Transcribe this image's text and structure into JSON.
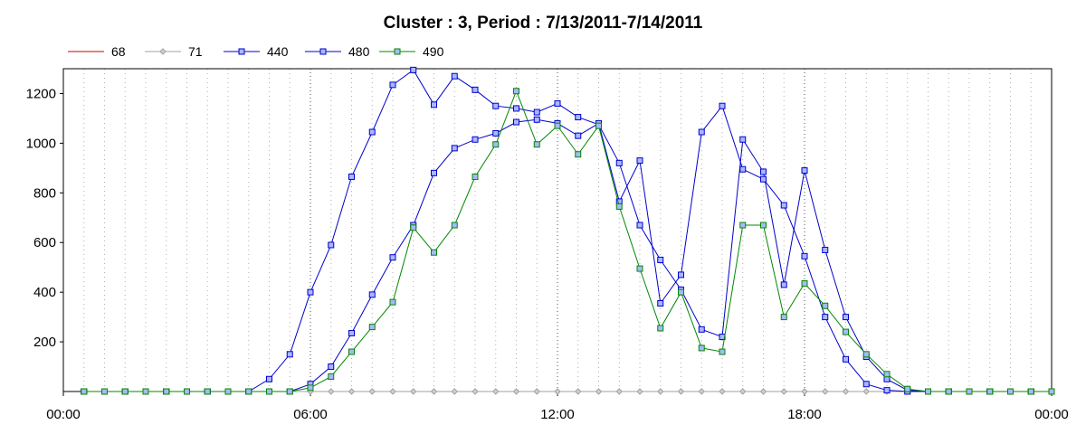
{
  "chart_data": {
    "type": "line",
    "title": "Cluster : 3, Period : 7/13/2011-7/14/2011",
    "xlabel": "",
    "ylabel": "",
    "x_ticks": [
      "00:00",
      "06:00",
      "12:00",
      "18:00",
      "00:00"
    ],
    "x_range_hours": [
      0,
      24
    ],
    "y_ticks": [
      200,
      400,
      600,
      800,
      1000,
      1200
    ],
    "ylim": [
      0,
      1300
    ],
    "grid": "dotted vertical every 30 min (denser), horizontal at y ticks",
    "legend_position": "top-left",
    "x_hours": [
      0.5,
      1,
      1.5,
      2,
      2.5,
      3,
      3.5,
      4,
      4.5,
      5,
      5.5,
      6,
      6.5,
      7,
      7.5,
      8,
      8.5,
      9,
      9.5,
      10,
      10.5,
      11,
      11.5,
      12,
      12.5,
      13,
      13.5,
      14,
      14.5,
      15,
      15.5,
      16,
      16.5,
      17,
      17.5,
      18,
      18.5,
      19,
      19.5,
      20,
      20.5,
      21,
      21.5,
      22,
      22.5,
      23,
      23.5,
      24
    ],
    "series": [
      {
        "name": "68",
        "color": "#cc0000",
        "marker": "none",
        "values": [
          0,
          0,
          0,
          0,
          0,
          0,
          0,
          0,
          0,
          0,
          0,
          0,
          0,
          0,
          0,
          0,
          0,
          0,
          0,
          0,
          0,
          0,
          0,
          0,
          0,
          0,
          0,
          0,
          0,
          0,
          0,
          0,
          0,
          0,
          0,
          0,
          0,
          0,
          0,
          0,
          0,
          0,
          0,
          0,
          0,
          0,
          0,
          0
        ]
      },
      {
        "name": "71",
        "color": "#a0a0a0",
        "marker": "diamond",
        "values": [
          0,
          0,
          0,
          0,
          0,
          0,
          0,
          0,
          0,
          0,
          0,
          0,
          0,
          0,
          0,
          0,
          0,
          0,
          0,
          0,
          0,
          0,
          0,
          0,
          0,
          0,
          0,
          0,
          0,
          0,
          0,
          0,
          0,
          0,
          0,
          0,
          0,
          0,
          0,
          0,
          0,
          0,
          0,
          0,
          0,
          0,
          0,
          0
        ]
      },
      {
        "name": "440",
        "color": "#0000cc",
        "marker": "square",
        "values": [
          0,
          0,
          0,
          0,
          0,
          0,
          0,
          0,
          0,
          50,
          150,
          400,
          590,
          865,
          1045,
          1235,
          1295,
          1155,
          1270,
          1215,
          1150,
          1140,
          1125,
          1160,
          1105,
          1075,
          920,
          670,
          530,
          410,
          250,
          220,
          1015,
          885,
          430,
          890,
          570,
          300,
          140,
          50,
          5,
          0,
          0,
          0,
          0,
          0,
          0,
          0
        ]
      },
      {
        "name": "480",
        "color": "#0000cc",
        "marker": "square",
        "values": [
          0,
          0,
          0,
          0,
          0,
          0,
          0,
          0,
          0,
          0,
          0,
          30,
          100,
          235,
          390,
          540,
          670,
          880,
          980,
          1015,
          1040,
          1085,
          1095,
          1080,
          1030,
          1080,
          765,
          930,
          355,
          470,
          1045,
          1150,
          895,
          855,
          750,
          545,
          300,
          130,
          30,
          5,
          0,
          0,
          0,
          0,
          0,
          0,
          0,
          0
        ]
      },
      {
        "name": "490",
        "color": "#008800",
        "marker": "square",
        "values": [
          0,
          0,
          0,
          0,
          0,
          0,
          0,
          0,
          0,
          0,
          0,
          15,
          60,
          160,
          260,
          360,
          660,
          560,
          670,
          865,
          995,
          1210,
          995,
          1070,
          955,
          1070,
          745,
          495,
          255,
          400,
          175,
          160,
          670,
          670,
          300,
          435,
          345,
          240,
          150,
          70,
          10,
          0,
          0,
          0,
          0,
          0,
          0,
          0
        ]
      }
    ]
  }
}
